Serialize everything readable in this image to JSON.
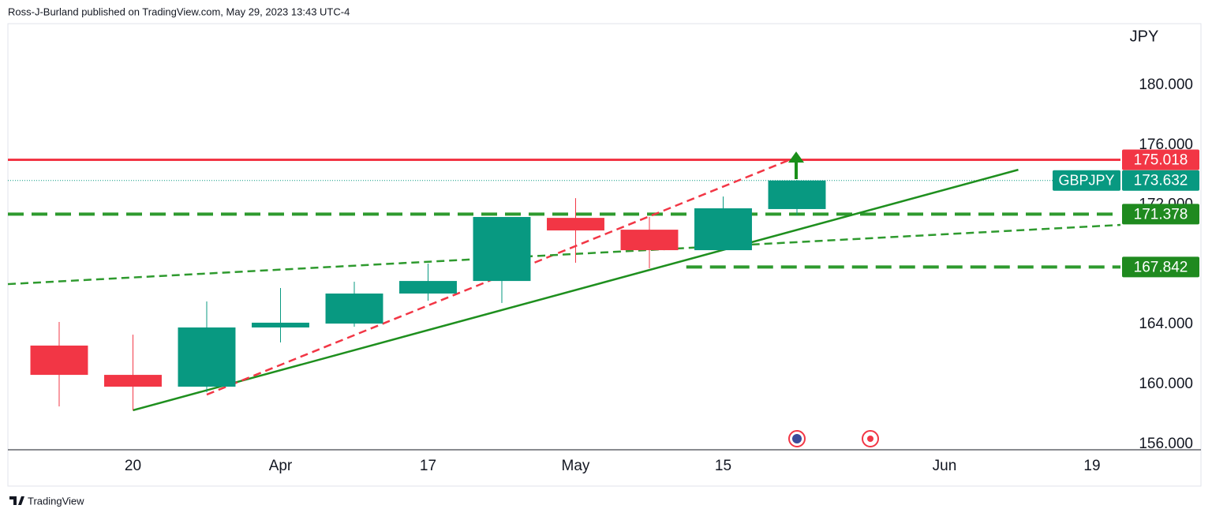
{
  "header": "Ross-J-Burland published on TradingView.com, May 29, 2023 13:43 UTC-4",
  "footer": "TradingView",
  "chart_data": {
    "type": "candlestick",
    "symbol": "GBPJPY",
    "currency": "JPY",
    "x": [
      0,
      1,
      2,
      3,
      4,
      5,
      6,
      7,
      8,
      9,
      10
    ],
    "open": [
      162.59,
      160.63,
      159.84,
      163.8,
      164.06,
      166.07,
      166.91,
      171.13,
      170.34,
      168.97,
      171.72
    ],
    "high": [
      164.17,
      163.32,
      165.54,
      166.44,
      166.86,
      168.07,
      171.19,
      172.45,
      171.19,
      172.56,
      173.67
    ],
    "low": [
      158.52,
      158.26,
      159.47,
      162.8,
      163.85,
      165.59,
      165.44,
      168.13,
      167.76,
      168.97,
      171.29
    ],
    "close": [
      160.63,
      159.84,
      163.8,
      164.12,
      166.07,
      166.91,
      171.19,
      170.29,
      168.97,
      171.77,
      173.632
    ],
    "up_color": "#089981",
    "down_color": "#f23645",
    "xlim": [
      -0.695,
      14.385
    ],
    "xticks": [
      {
        "value": 1,
        "label": "20"
      },
      {
        "value": 3,
        "label": "Apr"
      },
      {
        "value": 5,
        "label": "17"
      },
      {
        "value": 7,
        "label": "May"
      },
      {
        "value": 9,
        "label": "15"
      },
      {
        "value": 12,
        "label": "Jun"
      },
      {
        "value": 14,
        "label": "19"
      }
    ],
    "ylim": [
      155.62,
      184.12
    ],
    "yticks": [
      {
        "value": 156,
        "label": "156.000"
      },
      {
        "value": 160,
        "label": "160.000"
      },
      {
        "value": 164,
        "label": "164.000"
      },
      {
        "value": 172,
        "label": "172.000"
      },
      {
        "value": 176,
        "label": "176.000"
      },
      {
        "value": 180,
        "label": "180.000"
      }
    ],
    "last_price": 173.632,
    "levels": [
      {
        "value": 175.018,
        "color": "#f23645",
        "dash": "solid",
        "x_start": -0.695
      },
      {
        "value": 171.378,
        "color": "#2e9a2e",
        "dash": "dashed",
        "x_start": -0.695
      },
      {
        "value": 167.842,
        "color": "#2e9a2e",
        "dash": "dashed",
        "x_start": 8.5
      }
    ],
    "trend_lines": [
      {
        "color": "#1e8f1e",
        "dash": "solid",
        "points": [
          [
            1,
            158.26
          ],
          [
            13,
            174.35
          ]
        ]
      },
      {
        "color": "#f23645",
        "dash": "dashed",
        "points": [
          [
            2,
            159.31
          ],
          [
            9.89,
            174.99
          ]
        ]
      },
      {
        "color": "#2e9a2e",
        "dash": "dashed",
        "points": [
          [
            -0.695,
            166.7
          ],
          [
            14.385,
            170.66
          ]
        ]
      }
    ]
  }
}
